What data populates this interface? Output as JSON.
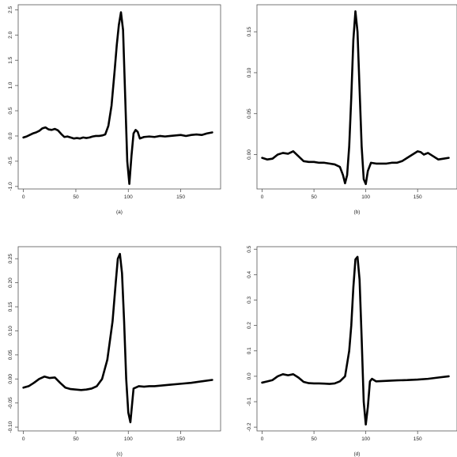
{
  "chart_data": [
    {
      "type": "line",
      "caption": "(a)",
      "xlim": [
        -5,
        188
      ],
      "ylim": [
        -1.05,
        2.6
      ],
      "xticks": [
        0,
        50,
        100,
        150
      ],
      "yticks": [
        -1.0,
        -0.5,
        0.0,
        0.5,
        1.0,
        1.5,
        2.0,
        2.5
      ],
      "ytick_labels": [
        "-1.0",
        "-0.5",
        "0.0",
        "0.5",
        "1.0",
        "1.5",
        "2.0",
        "2.5"
      ],
      "x": [
        0,
        3,
        6,
        9,
        12,
        15,
        18,
        21,
        24,
        27,
        30,
        33,
        36,
        39,
        42,
        45,
        48,
        51,
        54,
        57,
        60,
        63,
        66,
        69,
        72,
        75,
        78,
        81,
        84,
        87,
        89,
        91,
        93,
        95,
        97,
        99,
        101,
        103,
        105,
        107,
        109,
        111,
        115,
        120,
        125,
        130,
        135,
        140,
        145,
        150,
        155,
        160,
        165,
        170,
        175,
        180
      ],
      "y": [
        -0.03,
        -0.01,
        0.02,
        0.05,
        0.07,
        0.1,
        0.15,
        0.17,
        0.13,
        0.12,
        0.14,
        0.11,
        0.04,
        -0.02,
        -0.01,
        -0.03,
        -0.05,
        -0.04,
        -0.05,
        -0.03,
        -0.04,
        -0.03,
        -0.01,
        0.0,
        0.0,
        0.01,
        0.03,
        0.2,
        0.6,
        1.3,
        1.8,
        2.2,
        2.45,
        2.1,
        0.8,
        -0.5,
        -0.95,
        -0.4,
        0.05,
        0.12,
        0.08,
        -0.05,
        -0.02,
        -0.01,
        -0.02,
        0.0,
        -0.01,
        0.0,
        0.01,
        0.02,
        0.0,
        0.02,
        0.03,
        0.02,
        0.05,
        0.07
      ]
    },
    {
      "type": "line",
      "caption": "(b)",
      "xlim": [
        -5,
        188
      ],
      "ylim": [
        -0.042,
        0.183
      ],
      "xticks": [
        0,
        50,
        100,
        150
      ],
      "yticks": [
        0.0,
        0.05,
        0.1,
        0.15
      ],
      "ytick_labels": [
        "0.00",
        "0.05",
        "0.10",
        "0.15"
      ],
      "x": [
        0,
        5,
        10,
        15,
        20,
        25,
        30,
        35,
        40,
        45,
        50,
        55,
        60,
        65,
        70,
        75,
        78,
        80,
        82,
        84,
        86,
        88,
        90,
        92,
        94,
        96,
        98,
        100,
        102,
        105,
        110,
        115,
        120,
        125,
        130,
        135,
        140,
        145,
        150,
        153,
        156,
        160,
        165,
        170,
        175,
        180
      ],
      "y": [
        -0.004,
        -0.006,
        -0.005,
        0.0,
        0.002,
        0.001,
        0.004,
        -0.002,
        -0.008,
        -0.009,
        -0.009,
        -0.01,
        -0.01,
        -0.011,
        -0.012,
        -0.015,
        -0.025,
        -0.035,
        -0.025,
        0.01,
        0.07,
        0.14,
        0.175,
        0.15,
        0.08,
        0.01,
        -0.03,
        -0.036,
        -0.02,
        -0.01,
        -0.011,
        -0.011,
        -0.011,
        -0.01,
        -0.01,
        -0.008,
        -0.004,
        0.0,
        0.004,
        0.003,
        0.0,
        0.002,
        -0.002,
        -0.006,
        -0.005,
        -0.004
      ]
    },
    {
      "type": "line",
      "caption": "(c)",
      "xlim": [
        -5,
        188
      ],
      "ylim": [
        -0.108,
        0.275
      ],
      "xticks": [
        0,
        50,
        100,
        150
      ],
      "yticks": [
        -0.1,
        -0.05,
        0.0,
        0.05,
        0.1,
        0.15,
        0.2,
        0.25
      ],
      "ytick_labels": [
        "-0.10",
        "-0.05",
        "0.00",
        "0.05",
        "0.10",
        "0.15",
        "0.20",
        "0.25"
      ],
      "x": [
        0,
        5,
        10,
        15,
        20,
        25,
        30,
        35,
        40,
        45,
        50,
        55,
        60,
        65,
        70,
        75,
        80,
        85,
        88,
        90,
        92,
        94,
        96,
        98,
        100,
        102,
        105,
        110,
        115,
        120,
        125,
        130,
        140,
        150,
        160,
        170,
        180
      ],
      "y": [
        -0.018,
        -0.015,
        -0.008,
        0.0,
        0.005,
        0.002,
        0.003,
        -0.008,
        -0.018,
        -0.021,
        -0.022,
        -0.023,
        -0.022,
        -0.02,
        -0.015,
        0.0,
        0.04,
        0.12,
        0.2,
        0.25,
        0.26,
        0.22,
        0.12,
        0.0,
        -0.07,
        -0.09,
        -0.02,
        -0.015,
        -0.016,
        -0.015,
        -0.015,
        -0.014,
        -0.012,
        -0.01,
        -0.008,
        -0.005,
        -0.002
      ]
    },
    {
      "type": "line",
      "caption": "(d)",
      "xlim": [
        -5,
        188
      ],
      "ylim": [
        -0.215,
        0.51
      ],
      "xticks": [
        0,
        50,
        100,
        150
      ],
      "yticks": [
        -0.2,
        -0.1,
        0.0,
        0.1,
        0.2,
        0.3,
        0.4,
        0.5
      ],
      "ytick_labels": [
        "-0.2",
        "-0.1",
        "0.0",
        "0.1",
        "0.2",
        "0.3",
        "0.4",
        "0.5"
      ],
      "x": [
        0,
        5,
        10,
        15,
        20,
        25,
        30,
        35,
        40,
        45,
        50,
        55,
        60,
        65,
        70,
        75,
        80,
        84,
        86,
        88,
        90,
        92,
        94,
        96,
        98,
        100,
        102,
        104,
        106,
        110,
        120,
        130,
        140,
        150,
        160,
        170,
        180
      ],
      "y": [
        -0.025,
        -0.02,
        -0.015,
        0.0,
        0.008,
        0.004,
        0.008,
        -0.005,
        -0.022,
        -0.027,
        -0.028,
        -0.028,
        -0.029,
        -0.03,
        -0.028,
        -0.02,
        0.0,
        0.1,
        0.2,
        0.35,
        0.46,
        0.47,
        0.38,
        0.15,
        -0.1,
        -0.19,
        -0.12,
        -0.02,
        -0.01,
        -0.02,
        -0.018,
        -0.016,
        -0.015,
        -0.013,
        -0.01,
        -0.005,
        0.0
      ]
    }
  ]
}
